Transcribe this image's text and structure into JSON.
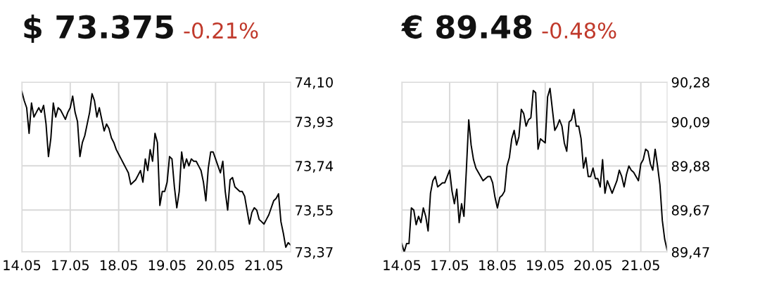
{
  "chart_data": [
    {
      "type": "line",
      "title": "$ 73.375",
      "subtitle": "-0.21%",
      "grid": true,
      "legend": false,
      "marker": "none",
      "line_style": "solid",
      "categories": [
        "14.05",
        null,
        null,
        null,
        null,
        null,
        null,
        null,
        null,
        null,
        null,
        null,
        null,
        null,
        null,
        null,
        null,
        null,
        null,
        null,
        "17.05",
        null,
        null,
        null,
        null,
        null,
        null,
        null,
        null,
        null,
        null,
        null,
        null,
        null,
        null,
        null,
        null,
        null,
        null,
        null,
        "18.05",
        null,
        null,
        null,
        null,
        null,
        null,
        null,
        null,
        null,
        null,
        null,
        null,
        null,
        null,
        null,
        null,
        null,
        null,
        null,
        "19.05",
        null,
        null,
        null,
        null,
        null,
        null,
        null,
        null,
        null,
        null,
        null,
        null,
        null,
        null,
        null,
        null,
        null,
        null,
        null,
        "20.05",
        null,
        null,
        null,
        null,
        null,
        null,
        null,
        null,
        null,
        null,
        null,
        null,
        null,
        null,
        null,
        null,
        null,
        null,
        null,
        "21.05",
        null,
        null,
        null,
        null,
        null,
        null,
        null,
        null,
        null,
        null,
        null
      ],
      "ylim": [
        73.37,
        74.1
      ],
      "yticks": [
        {
          "value": 73.37,
          "label": "73,37"
        },
        {
          "value": 73.55,
          "label": "73,55"
        },
        {
          "value": 73.74,
          "label": "73,74"
        },
        {
          "value": 73.93,
          "label": "73,93"
        },
        {
          "value": 74.1,
          "label": "74,10"
        }
      ],
      "series": [
        {
          "color": "#000000",
          "values": [
            74.06,
            74.02,
            73.99,
            73.88,
            74.01,
            73.95,
            73.97,
            73.99,
            73.97,
            74.0,
            73.92,
            73.78,
            73.86,
            74.01,
            73.95,
            73.99,
            73.98,
            73.96,
            73.94,
            73.97,
            73.99,
            74.04,
            73.97,
            73.93,
            73.78,
            73.84,
            73.87,
            73.92,
            73.97,
            74.05,
            74.02,
            73.95,
            73.99,
            73.94,
            73.89,
            73.92,
            73.9,
            73.86,
            73.84,
            73.81,
            73.79,
            73.77,
            73.75,
            73.73,
            73.71,
            73.66,
            73.67,
            73.68,
            73.7,
            73.72,
            73.67,
            73.77,
            73.72,
            73.81,
            73.76,
            73.88,
            73.84,
            73.57,
            73.63,
            73.63,
            73.67,
            73.78,
            73.77,
            73.65,
            73.56,
            73.63,
            73.8,
            73.73,
            73.77,
            73.74,
            73.77,
            73.76,
            73.76,
            73.74,
            73.72,
            73.67,
            73.59,
            73.73,
            73.8,
            73.8,
            73.77,
            73.74,
            73.71,
            73.76,
            73.63,
            73.55,
            73.68,
            73.69,
            73.65,
            73.64,
            73.63,
            73.63,
            73.61,
            73.55,
            73.49,
            73.54,
            73.56,
            73.55,
            73.51,
            73.5,
            73.49,
            73.51,
            73.53,
            73.56,
            73.59,
            73.6,
            73.62,
            73.5,
            73.45,
            73.39,
            73.41,
            73.4
          ]
        }
      ]
    },
    {
      "type": "line",
      "title": "€ 89.48",
      "subtitle": "-0.48%",
      "grid": true,
      "legend": false,
      "marker": "none",
      "line_style": "solid",
      "categories": [
        "14.05",
        null,
        null,
        null,
        null,
        null,
        null,
        null,
        null,
        null,
        null,
        null,
        null,
        null,
        null,
        null,
        null,
        null,
        null,
        null,
        "17.05",
        null,
        null,
        null,
        null,
        null,
        null,
        null,
        null,
        null,
        null,
        null,
        null,
        null,
        null,
        null,
        null,
        null,
        null,
        null,
        "18.05",
        null,
        null,
        null,
        null,
        null,
        null,
        null,
        null,
        null,
        null,
        null,
        null,
        null,
        null,
        null,
        null,
        null,
        null,
        null,
        "19.05",
        null,
        null,
        null,
        null,
        null,
        null,
        null,
        null,
        null,
        null,
        null,
        null,
        null,
        null,
        null,
        null,
        null,
        null,
        null,
        "20.05",
        null,
        null,
        null,
        null,
        null,
        null,
        null,
        null,
        null,
        null,
        null,
        null,
        null,
        null,
        null,
        null,
        null,
        null,
        null,
        "21.05",
        null,
        null,
        null,
        null,
        null,
        null,
        null,
        null,
        null,
        null,
        null
      ],
      "ylim": [
        89.47,
        90.28
      ],
      "yticks": [
        {
          "value": 89.47,
          "label": "89,47"
        },
        {
          "value": 89.67,
          "label": "89,67"
        },
        {
          "value": 89.88,
          "label": "89,88"
        },
        {
          "value": 90.09,
          "label": "90,09"
        },
        {
          "value": 90.28,
          "label": "90,28"
        }
      ],
      "series": [
        {
          "color": "#000000",
          "values": [
            89.51,
            89.47,
            89.51,
            89.51,
            89.68,
            89.67,
            89.6,
            89.64,
            89.61,
            89.68,
            89.64,
            89.57,
            89.75,
            89.81,
            89.83,
            89.78,
            89.79,
            89.8,
            89.8,
            89.83,
            89.86,
            89.76,
            89.7,
            89.77,
            89.61,
            89.7,
            89.64,
            89.86,
            90.1,
            89.98,
            89.91,
            89.87,
            89.85,
            89.83,
            89.81,
            89.82,
            89.83,
            89.83,
            89.8,
            89.73,
            89.68,
            89.73,
            89.74,
            89.76,
            89.88,
            89.92,
            90.01,
            90.05,
            89.98,
            90.02,
            90.15,
            90.13,
            90.07,
            90.1,
            90.11,
            90.24,
            90.23,
            89.96,
            90.01,
            90.0,
            89.99,
            90.21,
            90.25,
            90.15,
            90.05,
            90.07,
            90.1,
            90.07,
            89.99,
            89.95,
            90.09,
            90.1,
            90.15,
            90.07,
            90.07,
            90.01,
            89.87,
            89.92,
            89.83,
            89.83,
            89.87,
            89.82,
            89.82,
            89.78,
            89.91,
            89.75,
            89.81,
            89.78,
            89.75,
            89.78,
            89.81,
            89.86,
            89.83,
            89.78,
            89.84,
            89.88,
            89.86,
            89.85,
            89.83,
            89.81,
            89.89,
            89.91,
            89.96,
            89.95,
            89.89,
            89.86,
            89.96,
            89.88,
            89.79,
            89.62,
            89.53,
            89.48
          ]
        }
      ]
    }
  ]
}
